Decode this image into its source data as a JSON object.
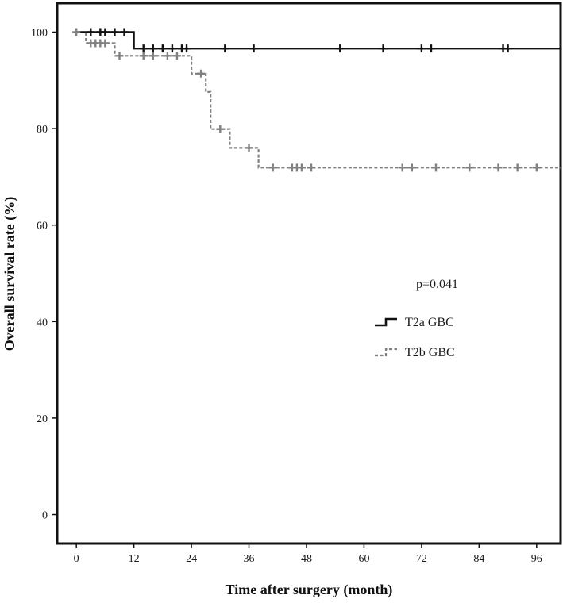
{
  "chart_data": {
    "type": "line",
    "subtype": "kaplan-meier",
    "title": "",
    "xlabel": "Time after surgery (month)",
    "ylabel": "Overall survival rate (%)",
    "xlim": [
      -4,
      101
    ],
    "ylim": [
      -6,
      106
    ],
    "xticks": [
      0,
      12,
      24,
      36,
      48,
      60,
      72,
      84,
      96
    ],
    "yticks": [
      0,
      20,
      40,
      60,
      80,
      100
    ],
    "grid": false,
    "legend_position": "center-right",
    "annotations": [
      {
        "text": "p=0.041",
        "x": 96,
        "y": 48
      }
    ],
    "series": [
      {
        "name": "T2a GBC",
        "color": "#111111",
        "dash": "solid",
        "steps": [
          [
            0,
            100
          ],
          [
            12,
            100
          ],
          [
            12,
            96.6
          ],
          [
            101,
            96.6
          ]
        ],
        "censored": [
          [
            3,
            100
          ],
          [
            5,
            100
          ],
          [
            6,
            100
          ],
          [
            8,
            100
          ],
          [
            10,
            100
          ],
          [
            14,
            96.6
          ],
          [
            16,
            96.6
          ],
          [
            18,
            96.6
          ],
          [
            20,
            96.6
          ],
          [
            22,
            96.6
          ],
          [
            23,
            96.6
          ],
          [
            31,
            96.6
          ],
          [
            37,
            96.6
          ],
          [
            55,
            96.6
          ],
          [
            64,
            96.6
          ],
          [
            72,
            96.6
          ],
          [
            74,
            96.6
          ],
          [
            89,
            96.6
          ],
          [
            90,
            96.6
          ]
        ]
      },
      {
        "name": "T2b GBC",
        "color": "#808080",
        "dash": "dashed",
        "steps": [
          [
            0,
            100
          ],
          [
            2,
            100
          ],
          [
            2,
            97.7
          ],
          [
            8,
            97.7
          ],
          [
            8,
            95.1
          ],
          [
            24,
            95.1
          ],
          [
            24,
            91.4
          ],
          [
            27,
            91.4
          ],
          [
            27,
            87.6
          ],
          [
            28,
            87.6
          ],
          [
            28,
            79.9
          ],
          [
            32,
            79.9
          ],
          [
            32,
            76.0
          ],
          [
            38,
            76.0
          ],
          [
            38,
            71.9
          ],
          [
            101,
            71.9
          ]
        ],
        "censored": [
          [
            0,
            100
          ],
          [
            3,
            97.7
          ],
          [
            4,
            97.7
          ],
          [
            5,
            97.7
          ],
          [
            6,
            97.7
          ],
          [
            9,
            95.1
          ],
          [
            14,
            95.1
          ],
          [
            16,
            95.1
          ],
          [
            19,
            95.1
          ],
          [
            21,
            95.1
          ],
          [
            26,
            91.4
          ],
          [
            30,
            79.9
          ],
          [
            36,
            76.0
          ],
          [
            41,
            71.9
          ],
          [
            45,
            71.9
          ],
          [
            46,
            71.9
          ],
          [
            47,
            71.9
          ],
          [
            49,
            71.9
          ],
          [
            68,
            71.9
          ],
          [
            70,
            71.9
          ],
          [
            75,
            71.9
          ],
          [
            82,
            71.9
          ],
          [
            88,
            71.9
          ],
          [
            92,
            71.9
          ],
          [
            96,
            71.9
          ]
        ]
      }
    ]
  }
}
